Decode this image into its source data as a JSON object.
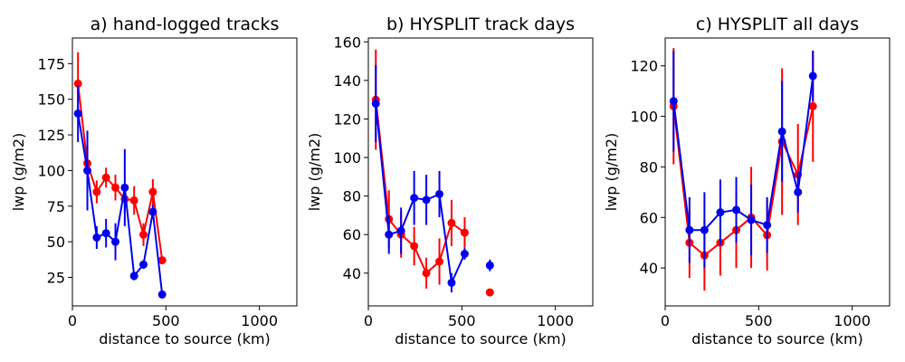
{
  "chart_data": [
    {
      "type": "line",
      "title": "a) hand-logged tracks",
      "xlabel": "distance to source (km)",
      "ylabel": "lwp (g/m2)",
      "xlim": [
        0,
        1200
      ],
      "ylim": [
        5,
        193
      ],
      "xticks": [
        0,
        500,
        1000
      ],
      "yticks": [
        25,
        50,
        75,
        100,
        125,
        150,
        175
      ],
      "series": [
        {
          "name": "red",
          "color": "#ff0000",
          "x": [
            30,
            80,
            130,
            180,
            230,
            280,
            330,
            380,
            430,
            480
          ],
          "y": [
            161,
            105,
            85,
            95,
            88,
            80,
            79,
            55,
            85,
            37
          ],
          "err": [
            22,
            12,
            8,
            7,
            9,
            10,
            10,
            8,
            9,
            2
          ],
          "connected": [
            true,
            true,
            true,
            true,
            true,
            true,
            true,
            true,
            true,
            true
          ]
        },
        {
          "name": "blue",
          "color": "#0000ee",
          "x": [
            30,
            80,
            130,
            180,
            230,
            280,
            330,
            380,
            430,
            480
          ],
          "y": [
            140,
            100,
            53,
            56,
            50,
            88,
            26,
            34,
            71,
            13
          ],
          "err": [
            20,
            28,
            8,
            10,
            13,
            27,
            3,
            3,
            5,
            1
          ],
          "connected": [
            true,
            true,
            true,
            true,
            true,
            true,
            true,
            true,
            true,
            true
          ]
        }
      ]
    },
    {
      "type": "line",
      "title": "b) HYSPLIT track days",
      "xlabel": "distance to source (km)",
      "ylabel": "lwp (g/m2)",
      "xlim": [
        0,
        1200
      ],
      "ylim": [
        23,
        162
      ],
      "xticks": [
        0,
        500,
        1000
      ],
      "yticks": [
        40,
        60,
        80,
        100,
        120,
        140,
        160
      ],
      "series": [
        {
          "name": "red",
          "color": "#ff0000",
          "x": [
            40,
            110,
            175,
            245,
            310,
            380,
            445,
            515,
            650
          ],
          "y": [
            130,
            68,
            60,
            54,
            40,
            46,
            66,
            61,
            30
          ],
          "err": [
            26,
            15,
            12,
            10,
            8,
            12,
            12,
            8,
            1
          ],
          "connected": [
            true,
            true,
            true,
            true,
            true,
            true,
            true,
            true,
            false
          ]
        },
        {
          "name": "blue",
          "color": "#0000ee",
          "x": [
            40,
            110,
            175,
            245,
            310,
            380,
            445,
            515,
            650
          ],
          "y": [
            128,
            60,
            62,
            79,
            78,
            81,
            35,
            50,
            44
          ],
          "err": [
            20,
            10,
            12,
            14,
            13,
            12,
            5,
            3,
            3
          ],
          "connected": [
            true,
            true,
            true,
            true,
            true,
            true,
            true,
            true,
            false
          ]
        }
      ]
    },
    {
      "type": "line",
      "title": "c) HYSPLIT all days",
      "xlabel": "distance to source (km)",
      "ylabel": "lwp (g/m2)",
      "xlim": [
        0,
        1200
      ],
      "ylim": [
        25,
        131
      ],
      "xticks": [
        0,
        500,
        1000
      ],
      "yticks": [
        40,
        60,
        80,
        100,
        120
      ],
      "series": [
        {
          "name": "red",
          "color": "#ff0000",
          "x": [
            45,
            130,
            210,
            295,
            380,
            460,
            545,
            625,
            710,
            790
          ],
          "y": [
            104,
            50,
            45,
            50,
            55,
            60,
            53,
            90,
            77,
            104
          ],
          "err": [
            23,
            14,
            14,
            13,
            15,
            20,
            14,
            29,
            20,
            22
          ],
          "connected": [
            true,
            true,
            true,
            true,
            true,
            true,
            true,
            true,
            true,
            true
          ]
        },
        {
          "name": "blue",
          "color": "#0000ee",
          "x": [
            45,
            130,
            210,
            295,
            380,
            460,
            545,
            625,
            710,
            790
          ],
          "y": [
            106,
            55,
            55,
            62,
            63,
            59,
            57,
            94,
            70,
            116
          ],
          "err": [
            20,
            13,
            15,
            13,
            13,
            14,
            11,
            20,
            8,
            10
          ],
          "connected": [
            true,
            true,
            true,
            true,
            true,
            true,
            true,
            true,
            true,
            true
          ]
        }
      ]
    }
  ]
}
